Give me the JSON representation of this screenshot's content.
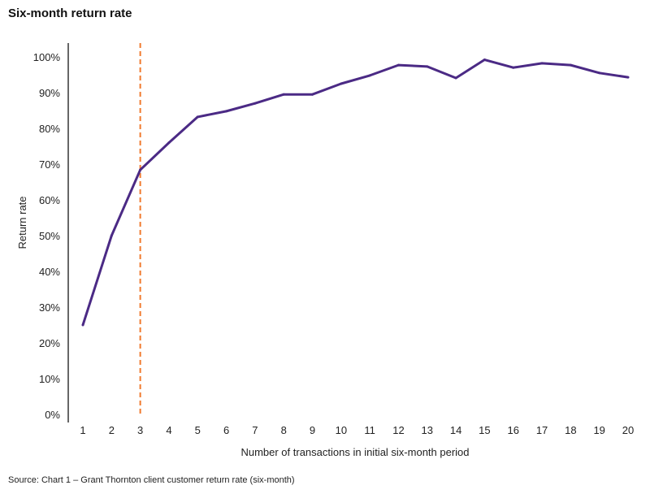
{
  "chart_data": {
    "type": "line",
    "title": "Six-month return rate",
    "xlabel": "Number of transactions in initial six-month period",
    "ylabel": "Return rate",
    "x": [
      1,
      2,
      3,
      4,
      5,
      6,
      7,
      8,
      9,
      10,
      11,
      12,
      13,
      14,
      15,
      16,
      17,
      18,
      19,
      20
    ],
    "series": [
      {
        "name": "Return rate",
        "color": "#4b2a85",
        "values": [
          25,
          50,
          68.4,
          76,
          83.2,
          84.8,
          87,
          89.5,
          89.5,
          92.5,
          94.8,
          97.7,
          97.3,
          94.1,
          99.2,
          97,
          98.2,
          97.7,
          95.5,
          94.3
        ]
      }
    ],
    "ylim": [
      0,
      100
    ],
    "yticks": [
      "0%",
      "10%",
      "20%",
      "30%",
      "40%",
      "50%",
      "60%",
      "70%",
      "80%",
      "90%",
      "100%"
    ],
    "reference_line": {
      "x": 3,
      "color": "#f07a2e",
      "style": "dashed"
    },
    "grid": false,
    "source": "Source: Chart 1 – Grant Thornton client customer return rate (six-month)"
  }
}
